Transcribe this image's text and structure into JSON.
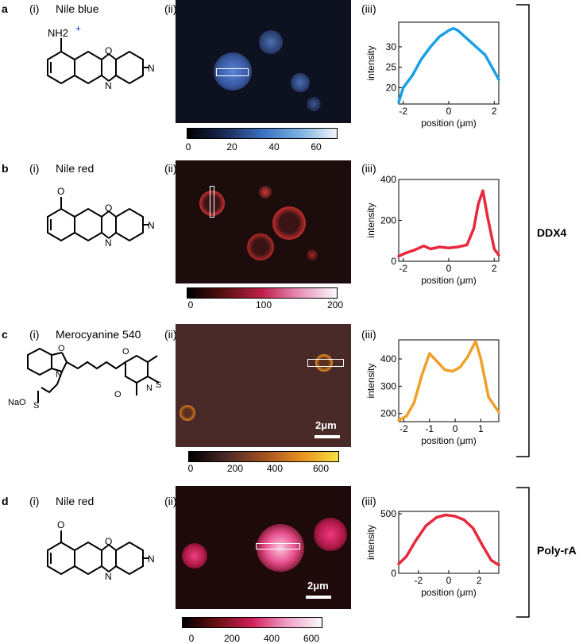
{
  "rows": [
    {
      "letter": "a",
      "dye": "Nile blue",
      "sub_i": "(i)",
      "sub_ii": "(ii)",
      "sub_iii": "(iii)",
      "amine": "NH2",
      "charge": "+",
      "colorbar_ticks": [
        "0",
        "20",
        "40",
        "60"
      ]
    },
    {
      "letter": "b",
      "dye": "Nile red",
      "sub_i": "(i)",
      "sub_ii": "(ii)",
      "sub_iii": "(iii)",
      "colorbar_ticks": [
        "0",
        "100",
        "200"
      ]
    },
    {
      "letter": "c",
      "dye": "Merocyanine 540",
      "sub_i": "(i)",
      "sub_ii": "(ii)",
      "sub_iii": "(iii)",
      "scale": "2μm",
      "colorbar_ticks": [
        "0",
        "200",
        "400",
        "600"
      ],
      "na_label": "NaO",
      "s_label": "S",
      "o_label": "O",
      "n_label": "N"
    },
    {
      "letter": "d",
      "dye": "Nile red",
      "sub_i": "(i)",
      "sub_ii": "(ii)",
      "sub_iii": "(iii)",
      "scale": "2μm",
      "colorbar_ticks": [
        "0",
        "200",
        "400",
        "600"
      ]
    }
  ],
  "chem_labels": {
    "O": "O",
    "N": "N"
  },
  "groups": {
    "ddx4": "DDX4",
    "polyra": "Poly-rA"
  },
  "colors": {
    "blue": "#1aa0e6",
    "red": "#e8283c",
    "orange": "#f0a02a"
  },
  "chart_data": [
    {
      "type": "line",
      "xlabel": "position (μm)",
      "ylabel": "intensity",
      "xlim": [
        -2.2,
        2.2
      ],
      "ylim": [
        16,
        36
      ],
      "xticks": [
        "-2",
        "0",
        "2"
      ],
      "yticks": [
        "20",
        "25",
        "30"
      ],
      "x": [
        -2.2,
        -2.0,
        -1.6,
        -1.2,
        -0.8,
        -0.4,
        0.0,
        0.2,
        0.4,
        0.8,
        1.2,
        1.6,
        2.0,
        2.2
      ],
      "values": [
        16.5,
        20,
        23,
        27,
        30,
        32.5,
        34,
        34.5,
        34,
        32,
        30,
        28,
        24,
        22
      ],
      "series_color": "#1aa0e6"
    },
    {
      "type": "line",
      "xlabel": "position (μm)",
      "ylabel": "intensity",
      "xlim": [
        -2.2,
        2.2
      ],
      "ylim": [
        0,
        400
      ],
      "xticks": [
        "-2",
        "0",
        "2"
      ],
      "yticks": [
        "0",
        "200",
        "400"
      ],
      "x": [
        -2.2,
        -1.9,
        -1.5,
        -1.1,
        -0.8,
        -0.4,
        0.0,
        0.4,
        0.8,
        1.1,
        1.3,
        1.5,
        1.7,
        2.0,
        2.2
      ],
      "values": [
        25,
        40,
        55,
        75,
        60,
        70,
        65,
        70,
        80,
        160,
        280,
        345,
        220,
        60,
        30
      ],
      "series_color": "#e8283c"
    },
    {
      "type": "line",
      "xlabel": "position (μm)",
      "ylabel": "intensity",
      "xlim": [
        -2.2,
        1.7
      ],
      "ylim": [
        170,
        470
      ],
      "xticks": [
        "-2",
        "-1",
        "0",
        "1"
      ],
      "yticks": [
        "200",
        "300",
        "400"
      ],
      "x": [
        -2.2,
        -1.9,
        -1.6,
        -1.3,
        -1.0,
        -0.7,
        -0.4,
        -0.1,
        0.2,
        0.5,
        0.8,
        1.0,
        1.3,
        1.7
      ],
      "values": [
        175,
        190,
        240,
        340,
        420,
        390,
        360,
        355,
        370,
        410,
        465,
        400,
        260,
        205
      ],
      "series_color": "#f0a02a"
    },
    {
      "type": "line",
      "xlabel": "position (μm)",
      "ylabel": "intensity",
      "xlim": [
        -3.3,
        3.3
      ],
      "ylim": [
        0,
        520
      ],
      "xticks": [
        "-2",
        "0",
        "2"
      ],
      "yticks": [
        "0",
        "500"
      ],
      "x": [
        -3.3,
        -2.8,
        -2.2,
        -1.5,
        -0.8,
        -0.2,
        0.4,
        1.0,
        1.6,
        2.2,
        2.8,
        3.3
      ],
      "values": [
        80,
        140,
        270,
        400,
        470,
        490,
        480,
        450,
        380,
        240,
        110,
        70
      ],
      "series_color": "#e8283c"
    }
  ]
}
